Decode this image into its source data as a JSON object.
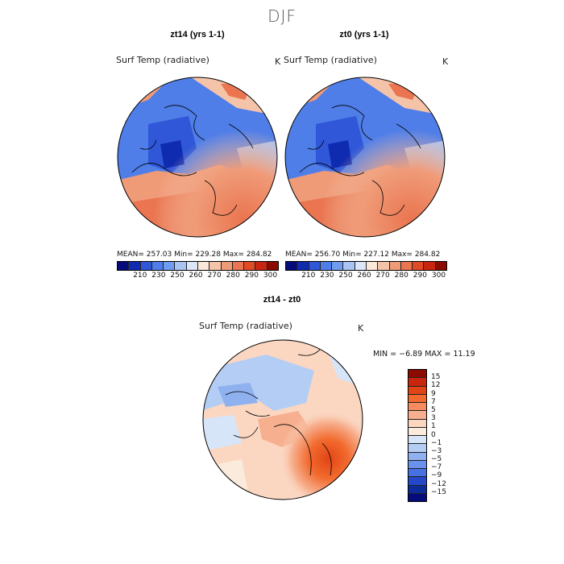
{
  "figure_title": "DJF",
  "panels": [
    {
      "title": "zt14 (yrs 1-1)",
      "variable": "Surf Temp (radiative)",
      "unit": "K",
      "stats": "MEAN= 257.03    Min= 229.28    Max= 284.82"
    },
    {
      "title": "zt0 (yrs 1-1)",
      "variable": "Surf Temp (radiative)",
      "unit": "K",
      "stats": "MEAN= 256.70    Min= 227.12    Max= 284.82"
    },
    {
      "title": "zt14 - zt0",
      "variable": "Surf Temp (radiative)",
      "unit": "K",
      "stats": "MIN =   −6.89  MAX =   11.19"
    }
  ],
  "colorbar_abs": {
    "colors": [
      "#050b7a",
      "#0f2bb0",
      "#2f57d8",
      "#4f7ee8",
      "#6f9bf0",
      "#a9c3f3",
      "#dbe6f8",
      "#fbe8d8",
      "#f5c4a8",
      "#f09b78",
      "#ea7550",
      "#e04a24",
      "#c8260e",
      "#8b0b00"
    ],
    "tick_labels": [
      "210",
      "230",
      "250",
      "260",
      "270",
      "280",
      "290",
      "300"
    ]
  },
  "colorbar_diff": {
    "colors": [
      "#8b0b00",
      "#c8260e",
      "#e24515",
      "#f26a2e",
      "#f58b5e",
      "#f7b08f",
      "#fbd7c2",
      "#fbebdc",
      "#d7e5f8",
      "#b4cdf4",
      "#8fb1ef",
      "#6a92ea",
      "#4671e3",
      "#2448c9",
      "#0c2c99",
      "#050b7a"
    ],
    "tick_labels": [
      "15",
      "12",
      "9",
      "7",
      "5",
      "3",
      "1",
      "0",
      "−1",
      "−3",
      "−5",
      "−7",
      "−9",
      "−12",
      "−15"
    ]
  }
}
